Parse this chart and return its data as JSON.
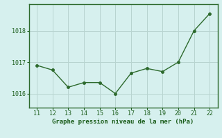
{
  "x": [
    11,
    12,
    13,
    14,
    15,
    16,
    17,
    18,
    19,
    20,
    21,
    22
  ],
  "y": [
    1016.9,
    1016.75,
    1016.2,
    1016.35,
    1016.35,
    1016.0,
    1016.65,
    1016.8,
    1016.7,
    1017.0,
    1018.0,
    1018.55
  ],
  "line_color": "#2d6a2d",
  "marker": "o",
  "marker_size": 2.5,
  "line_width": 1.0,
  "bg_color": "#d6f0ee",
  "grid_color": "#b8d4d0",
  "xlabel": "Graphe pression niveau de la mer (hPa)",
  "xlabel_color": "#1a5c1a",
  "xlabel_fontsize": 6.5,
  "tick_color": "#1a5c1a",
  "tick_fontsize": 6,
  "ytick_labels": [
    1016,
    1017,
    1018
  ],
  "ylim": [
    1015.55,
    1018.85
  ],
  "xlim": [
    10.5,
    22.5
  ],
  "xtick_labels": [
    11,
    12,
    13,
    14,
    15,
    16,
    17,
    18,
    19,
    20,
    21,
    22
  ],
  "spine_color": "#3d7a3d",
  "border_color": "#2d6a2d"
}
